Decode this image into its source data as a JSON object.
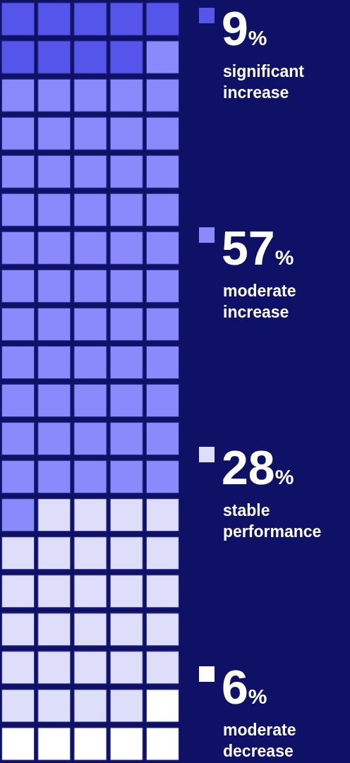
{
  "chart_data": {
    "type": "other",
    "categories": [
      "significant\nincrease",
      "moderate\nincrease",
      "stable\nperformance",
      "moderate\ndecrease"
    ],
    "values": [
      9,
      57,
      28,
      6
    ],
    "colors": [
      "#5555ec",
      "#8a8afc",
      "#dedefb",
      "#ffffff"
    ],
    "value_labels": [
      "9%",
      "57%",
      "28%",
      "6%"
    ]
  }
}
